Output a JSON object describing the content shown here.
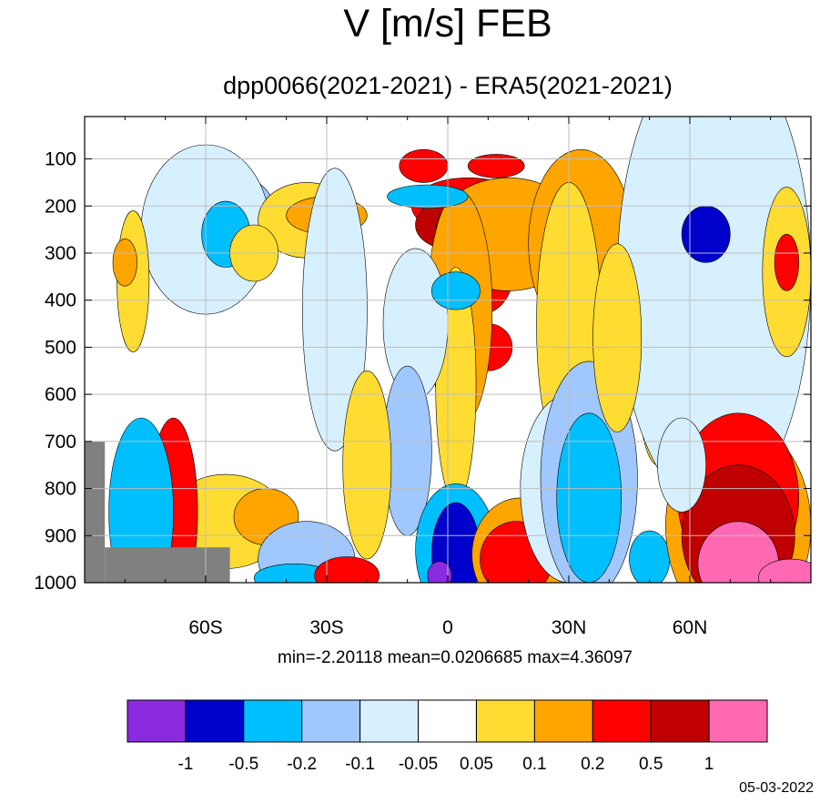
{
  "chart_data": {
    "type": "heatmap",
    "title": "V [m/s] FEB",
    "subtitle": "dpp0066(2021-2021) - ERA5(2021-2021)",
    "xlabel": "",
    "ylabel": "",
    "xlim": [
      -90,
      90
    ],
    "ylim": [
      1000,
      10
    ],
    "x_ticks": [
      {
        "value": -60,
        "label": "60S"
      },
      {
        "value": -30,
        "label": "30S"
      },
      {
        "value": 0,
        "label": "0"
      },
      {
        "value": 30,
        "label": "30N"
      },
      {
        "value": 60,
        "label": "60N"
      }
    ],
    "y_ticks": [
      100,
      200,
      300,
      400,
      500,
      600,
      700,
      800,
      900,
      1000
    ],
    "grid": true,
    "stats": {
      "text": "min=-2.20118   mean=0.0206685   max=4.36097",
      "min": -2.20118,
      "mean": 0.0206685,
      "max": 4.36097
    },
    "colorbar": {
      "levels": [
        "-1",
        "-0.5",
        "-0.2",
        "-0.1",
        "-0.05",
        "0.05",
        "0.1",
        "0.2",
        "0.5",
        "1"
      ],
      "colors": [
        "#8a2be2",
        "#0000cd",
        "#00bfff",
        "#a0c8ff",
        "#d7f0ff",
        "#ffffff",
        "#ffdc32",
        "#ffa500",
        "#ff0000",
        "#c00000",
        "#ff69b4"
      ]
    },
    "missing_color": "#808080",
    "date": "05-03-2022",
    "features": [
      {
        "lat": -6,
        "p": 115,
        "rx": 6,
        "rp": 35,
        "level": 8
      },
      {
        "lat": 5,
        "p": 200,
        "rx": 14,
        "rp": 60,
        "level": 8
      },
      {
        "lat": 12,
        "p": 115,
        "rx": 7,
        "rp": 25,
        "level": 8
      },
      {
        "lat": 0,
        "p": 240,
        "rx": 8,
        "rp": 50,
        "level": 9
      },
      {
        "lat": 8,
        "p": 350,
        "rx": 8,
        "rp": 80,
        "level": 8
      },
      {
        "lat": 10,
        "p": 500,
        "rx": 6,
        "rp": 50,
        "level": 8
      },
      {
        "lat": 15,
        "p": 260,
        "rx": 18,
        "rp": 120,
        "level": 7
      },
      {
        "lat": 3,
        "p": 420,
        "rx": 8,
        "rp": 250,
        "level": 7
      },
      {
        "lat": 2,
        "p": 580,
        "rx": 5,
        "rp": 250,
        "level": 6
      },
      {
        "lat": 32,
        "p": 250,
        "rx": 10,
        "rp": 160,
        "level": 8
      },
      {
        "lat": 36,
        "p": 240,
        "rx": 5,
        "rp": 50,
        "level": 9
      },
      {
        "lat": 33,
        "p": 280,
        "rx": 13,
        "rp": 200,
        "level": 7
      },
      {
        "lat": 30,
        "p": 450,
        "rx": 8,
        "rp": 300,
        "level": 6
      },
      {
        "lat": 52,
        "p": 450,
        "rx": 6,
        "rp": 300,
        "level": 6
      },
      {
        "lat": 62,
        "p": 300,
        "rx": 15,
        "rp": 300,
        "level": 2
      },
      {
        "lat": 64,
        "p": 350,
        "rx": 20,
        "rp": 420,
        "level": 3
      },
      {
        "lat": 66,
        "p": 350,
        "rx": 24,
        "rp": 500,
        "level": 4
      },
      {
        "lat": 64,
        "p": 260,
        "rx": 6,
        "rp": 60,
        "level": 1
      },
      {
        "lat": 84,
        "p": 340,
        "rx": 6,
        "rp": 180,
        "level": 6
      },
      {
        "lat": 84,
        "p": 320,
        "rx": 3,
        "rp": 60,
        "level": 8
      },
      {
        "lat": -55,
        "p": 210,
        "rx": 12,
        "rp": 80,
        "level": 3
      },
      {
        "lat": -60,
        "p": 250,
        "rx": 16,
        "rp": 180,
        "level": 4
      },
      {
        "lat": -55,
        "p": 260,
        "rx": 6,
        "rp": 70,
        "level": 2
      },
      {
        "lat": -78,
        "p": 360,
        "rx": 4,
        "rp": 150,
        "level": 6
      },
      {
        "lat": -80,
        "p": 320,
        "rx": 3,
        "rp": 50,
        "level": 7
      },
      {
        "lat": -35,
        "p": 230,
        "rx": 12,
        "rp": 80,
        "level": 6
      },
      {
        "lat": -30,
        "p": 220,
        "rx": 10,
        "rp": 40,
        "level": 7
      },
      {
        "lat": -48,
        "p": 300,
        "rx": 6,
        "rp": 60,
        "level": 6
      },
      {
        "lat": -28,
        "p": 420,
        "rx": 8,
        "rp": 300,
        "level": 4
      },
      {
        "lat": -10,
        "p": 420,
        "rx": 4,
        "rp": 80,
        "level": 3
      },
      {
        "lat": -8,
        "p": 450,
        "rx": 8,
        "rp": 160,
        "level": 4
      },
      {
        "lat": -5,
        "p": 180,
        "rx": 10,
        "rp": 25,
        "level": 2
      },
      {
        "lat": 2,
        "p": 380,
        "rx": 6,
        "rp": 40,
        "level": 2
      },
      {
        "lat": -10,
        "p": 720,
        "rx": 6,
        "rp": 180,
        "level": 3
      },
      {
        "lat": -20,
        "p": 750,
        "rx": 6,
        "rp": 200,
        "level": 6
      },
      {
        "lat": -55,
        "p": 870,
        "rx": 15,
        "rp": 100,
        "level": 6
      },
      {
        "lat": -45,
        "p": 860,
        "rx": 8,
        "rp": 60,
        "level": 7
      },
      {
        "lat": -68,
        "p": 850,
        "rx": 6,
        "rp": 200,
        "level": 8
      },
      {
        "lat": -78,
        "p": 850,
        "rx": 5,
        "rp": 120,
        "level": 1
      },
      {
        "lat": -76,
        "p": 850,
        "rx": 8,
        "rp": 200,
        "level": 2
      },
      {
        "lat": -35,
        "p": 950,
        "rx": 12,
        "rp": 80,
        "level": 3
      },
      {
        "lat": -38,
        "p": 990,
        "rx": 10,
        "rp": 30,
        "level": 2
      },
      {
        "lat": -25,
        "p": 985,
        "rx": 8,
        "rp": 40,
        "level": 8
      },
      {
        "lat": 2,
        "p": 930,
        "rx": 10,
        "rp": 140,
        "level": 2
      },
      {
        "lat": 2,
        "p": 940,
        "rx": 6,
        "rp": 110,
        "level": 1
      },
      {
        "lat": -2,
        "p": 985,
        "rx": 3,
        "rp": 30,
        "level": 0
      },
      {
        "lat": 18,
        "p": 940,
        "rx": 12,
        "rp": 120,
        "level": 7
      },
      {
        "lat": 17,
        "p": 950,
        "rx": 9,
        "rp": 80,
        "level": 8
      },
      {
        "lat": 30,
        "p": 800,
        "rx": 12,
        "rp": 200,
        "level": 4
      },
      {
        "lat": 35,
        "p": 780,
        "rx": 12,
        "rp": 250,
        "level": 3
      },
      {
        "lat": 35,
        "p": 820,
        "rx": 8,
        "rp": 180,
        "level": 2
      },
      {
        "lat": 50,
        "p": 950,
        "rx": 5,
        "rp": 60,
        "level": 2
      },
      {
        "lat": 72,
        "p": 880,
        "rx": 18,
        "rp": 220,
        "level": 7
      },
      {
        "lat": 72,
        "p": 820,
        "rx": 15,
        "rp": 180,
        "level": 8
      },
      {
        "lat": 72,
        "p": 900,
        "rx": 14,
        "rp": 150,
        "level": 9
      },
      {
        "lat": 72,
        "p": 960,
        "rx": 10,
        "rp": 90,
        "level": 10
      },
      {
        "lat": 85,
        "p": 990,
        "rx": 8,
        "rp": 40,
        "level": 10
      },
      {
        "lat": 42,
        "p": 480,
        "rx": 6,
        "rp": 200,
        "level": 6
      },
      {
        "lat": 58,
        "p": 750,
        "rx": 6,
        "rp": 100,
        "level": 4
      }
    ],
    "missing_regions": [
      {
        "lat_from": -90,
        "lat_to": -85,
        "p_from": 700,
        "p_to": 1000
      },
      {
        "lat_from": -85,
        "lat_to": -54,
        "p_from": 925,
        "p_to": 1000
      }
    ]
  }
}
